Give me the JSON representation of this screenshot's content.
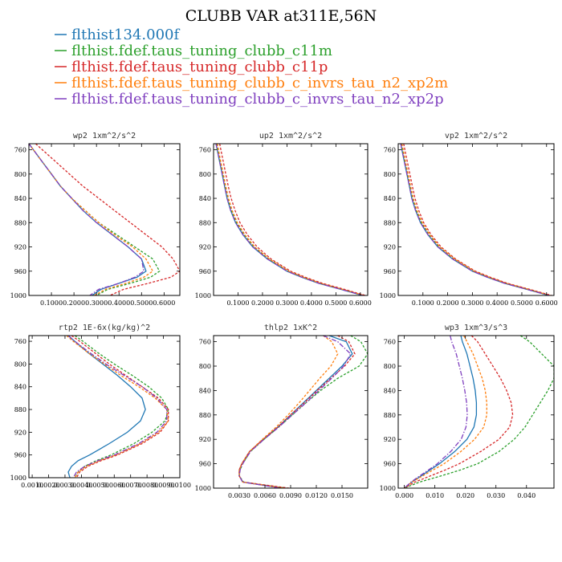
{
  "figure_title": "CLUBB VAR at311E,56N",
  "legend": [
    {
      "label": "flthist134.000f",
      "color": "#1f77b4"
    },
    {
      "label": "flthist.fdef.taus_tuning_clubb_c11m",
      "color": "#2ca02c"
    },
    {
      "label": "flthist.fdef.taus_tuning_clubb_c11p",
      "color": "#d62728"
    },
    {
      "label": "flthist.fdef.taus_tuning_clubb_c_invrs_tau_n2_xp2m",
      "color": "#ff7f0e"
    },
    {
      "label": "flthist.fdef.taus_tuning_clubb_c_invrs_tau_n2_xp2p",
      "color": "#7f3fbf"
    }
  ],
  "chart_data": [
    {
      "type": "line",
      "title": "wp2   1xm^2/s^2",
      "xlim": [
        0.0,
        0.67
      ],
      "ylim": [
        1000,
        750
      ],
      "xticks": [
        0.1,
        0.2,
        0.3,
        0.4,
        0.5,
        0.6
      ],
      "xtick_labels": [
        "0.1000",
        "0.2000",
        "0.3000",
        "0.4000",
        "0.5000",
        "0.6000"
      ],
      "yticks": [
        760,
        800,
        840,
        880,
        920,
        960,
        1000
      ],
      "ytick_labels": [
        "760",
        "800",
        "840",
        "880",
        "920",
        "960",
        "1000"
      ],
      "y": [
        750,
        760,
        780,
        800,
        820,
        840,
        860,
        880,
        900,
        920,
        940,
        960,
        970,
        980,
        990,
        1000
      ],
      "series": [
        {
          "color": "#1f77b4",
          "style": "solid",
          "values": [
            0.0,
            0.02,
            0.06,
            0.1,
            0.14,
            0.19,
            0.24,
            0.3,
            0.37,
            0.44,
            0.5,
            0.52,
            0.48,
            0.4,
            0.32,
            0.28
          ]
        },
        {
          "color": "#2ca02c",
          "style": "dashed",
          "values": [
            0.0,
            0.02,
            0.06,
            0.1,
            0.14,
            0.19,
            0.25,
            0.31,
            0.39,
            0.47,
            0.55,
            0.58,
            0.54,
            0.45,
            0.35,
            0.3
          ]
        },
        {
          "color": "#d62728",
          "style": "dashed",
          "values": [
            0.03,
            0.06,
            0.12,
            0.18,
            0.24,
            0.31,
            0.38,
            0.45,
            0.52,
            0.59,
            0.64,
            0.67,
            0.63,
            0.53,
            0.42,
            0.36
          ]
        },
        {
          "color": "#ff7f0e",
          "style": "dashed",
          "values": [
            0.0,
            0.02,
            0.06,
            0.1,
            0.14,
            0.19,
            0.25,
            0.31,
            0.38,
            0.46,
            0.52,
            0.55,
            0.51,
            0.43,
            0.34,
            0.29
          ]
        },
        {
          "color": "#7f3fbf",
          "style": "dashdot",
          "values": [
            0.0,
            0.02,
            0.06,
            0.1,
            0.14,
            0.19,
            0.24,
            0.3,
            0.37,
            0.44,
            0.5,
            0.51,
            0.47,
            0.4,
            0.31,
            0.27
          ]
        }
      ]
    },
    {
      "type": "line",
      "title": "up2   1xm^2/s^2",
      "xlim": [
        0.0,
        0.63
      ],
      "ylim": [
        1000,
        750
      ],
      "xticks": [
        0.1,
        0.2,
        0.3,
        0.4,
        0.5,
        0.6
      ],
      "xtick_labels": [
        "0.1000",
        "0.2000",
        "0.3000",
        "0.4000",
        "0.5000",
        "0.6000"
      ],
      "yticks": [
        760,
        800,
        840,
        880,
        920,
        960,
        1000
      ],
      "ytick_labels": [
        "760",
        "800",
        "840",
        "880",
        "920",
        "960",
        "1000"
      ],
      "y": [
        750,
        760,
        780,
        800,
        820,
        840,
        860,
        880,
        900,
        920,
        940,
        960,
        970,
        980,
        990,
        1000
      ],
      "series": [
        {
          "color": "#1f77b4",
          "style": "solid",
          "values": [
            0.01,
            0.015,
            0.025,
            0.035,
            0.045,
            0.055,
            0.07,
            0.09,
            0.12,
            0.16,
            0.22,
            0.3,
            0.36,
            0.43,
            0.52,
            0.61
          ]
        },
        {
          "color": "#2ca02c",
          "style": "dashed",
          "values": [
            0.012,
            0.017,
            0.027,
            0.037,
            0.047,
            0.058,
            0.073,
            0.094,
            0.125,
            0.165,
            0.225,
            0.305,
            0.365,
            0.435,
            0.525,
            0.61
          ]
        },
        {
          "color": "#d62728",
          "style": "dashed",
          "values": [
            0.025,
            0.03,
            0.04,
            0.05,
            0.06,
            0.072,
            0.088,
            0.108,
            0.138,
            0.178,
            0.235,
            0.315,
            0.375,
            0.445,
            0.535,
            0.62
          ]
        },
        {
          "color": "#ff7f0e",
          "style": "dashed",
          "values": [
            0.015,
            0.02,
            0.03,
            0.04,
            0.05,
            0.061,
            0.076,
            0.097,
            0.128,
            0.168,
            0.228,
            0.308,
            0.368,
            0.438,
            0.528,
            0.615
          ]
        },
        {
          "color": "#7f3fbf",
          "style": "dashdot",
          "values": [
            0.01,
            0.015,
            0.025,
            0.035,
            0.045,
            0.055,
            0.07,
            0.09,
            0.12,
            0.16,
            0.22,
            0.3,
            0.36,
            0.43,
            0.52,
            0.61
          ]
        }
      ]
    },
    {
      "type": "line",
      "title": "vp2   1xm^2/s^2",
      "xlim": [
        0.0,
        0.63
      ],
      "ylim": [
        1000,
        750
      ],
      "xticks": [
        0.1,
        0.2,
        0.3,
        0.4,
        0.5,
        0.6
      ],
      "xtick_labels": [
        "0.1000",
        "0.2000",
        "0.3000",
        "0.4000",
        "0.5000",
        "0.6000"
      ],
      "yticks": [
        760,
        800,
        840,
        880,
        920,
        960,
        1000
      ],
      "ytick_labels": [
        "760",
        "800",
        "840",
        "880",
        "920",
        "960",
        "1000"
      ],
      "y": [
        750,
        760,
        780,
        800,
        820,
        840,
        860,
        880,
        900,
        920,
        940,
        960,
        970,
        980,
        990,
        1000
      ],
      "series": [
        {
          "color": "#1f77b4",
          "style": "solid",
          "values": [
            0.01,
            0.015,
            0.025,
            0.035,
            0.045,
            0.055,
            0.07,
            0.09,
            0.12,
            0.16,
            0.22,
            0.3,
            0.36,
            0.43,
            0.52,
            0.61
          ]
        },
        {
          "color": "#2ca02c",
          "style": "dashed",
          "values": [
            0.012,
            0.017,
            0.027,
            0.037,
            0.047,
            0.058,
            0.073,
            0.094,
            0.125,
            0.165,
            0.225,
            0.305,
            0.365,
            0.435,
            0.525,
            0.61
          ]
        },
        {
          "color": "#d62728",
          "style": "dashed",
          "values": [
            0.022,
            0.027,
            0.037,
            0.047,
            0.057,
            0.068,
            0.083,
            0.103,
            0.133,
            0.173,
            0.232,
            0.312,
            0.372,
            0.442,
            0.532,
            0.62
          ]
        },
        {
          "color": "#ff7f0e",
          "style": "dashed",
          "values": [
            0.015,
            0.02,
            0.03,
            0.04,
            0.05,
            0.061,
            0.076,
            0.097,
            0.128,
            0.168,
            0.228,
            0.308,
            0.368,
            0.438,
            0.528,
            0.615
          ]
        },
        {
          "color": "#7f3fbf",
          "style": "dashdot",
          "values": [
            0.01,
            0.015,
            0.025,
            0.035,
            0.045,
            0.055,
            0.07,
            0.09,
            0.12,
            0.16,
            0.22,
            0.3,
            0.36,
            0.43,
            0.52,
            0.61
          ]
        }
      ]
    },
    {
      "type": "line",
      "title": "rtp2   1E-6x(kg/kg)^2",
      "xlim": [
        0.0008,
        0.01
      ],
      "ylim": [
        1000,
        750
      ],
      "xticks": [
        0.001,
        0.002,
        0.003,
        0.004,
        0.005,
        0.006,
        0.007,
        0.008,
        0.009,
        0.01
      ],
      "xtick_labels": [
        "0.0010",
        "0.0020",
        "0.0030",
        "0.0040",
        "0.0050",
        "0.0060",
        "0.0070",
        "0.0080",
        "0.0090",
        "0.0100"
      ],
      "yticks": [
        760,
        800,
        840,
        880,
        920,
        960,
        1000
      ],
      "ytick_labels": [
        "760",
        "800",
        "840",
        "880",
        "920",
        "960",
        "1000"
      ],
      "y": [
        750,
        760,
        780,
        800,
        820,
        840,
        860,
        880,
        900,
        920,
        940,
        960,
        970,
        980,
        990,
        1000
      ],
      "series": [
        {
          "color": "#1f77b4",
          "style": "solid",
          "values": [
            0.0032,
            0.0036,
            0.0044,
            0.0053,
            0.0062,
            0.007,
            0.0077,
            0.0079,
            0.0076,
            0.0068,
            0.0057,
            0.0045,
            0.0038,
            0.0034,
            0.0032,
            0.0033
          ]
        },
        {
          "color": "#2ca02c",
          "style": "dashed",
          "values": [
            0.0036,
            0.0041,
            0.005,
            0.006,
            0.0071,
            0.0081,
            0.0089,
            0.0093,
            0.0091,
            0.0083,
            0.0072,
            0.0058,
            0.0049,
            0.0042,
            0.0038,
            0.0036
          ]
        },
        {
          "color": "#d62728",
          "style": "dashed",
          "values": [
            0.0034,
            0.0039,
            0.0048,
            0.0057,
            0.0067,
            0.0077,
            0.0087,
            0.0093,
            0.0093,
            0.0088,
            0.0077,
            0.0062,
            0.0052,
            0.0044,
            0.0039,
            0.0037
          ]
        },
        {
          "color": "#ff7f0e",
          "style": "dashed",
          "values": [
            0.0031,
            0.0035,
            0.0044,
            0.0054,
            0.0064,
            0.0075,
            0.0085,
            0.0092,
            0.0093,
            0.0087,
            0.0076,
            0.0061,
            0.0051,
            0.0043,
            0.0038,
            0.0036
          ]
        },
        {
          "color": "#7f3fbf",
          "style": "dashdot",
          "values": [
            0.0032,
            0.0036,
            0.0045,
            0.0055,
            0.0066,
            0.0077,
            0.0086,
            0.0092,
            0.0092,
            0.0086,
            0.0075,
            0.006,
            0.005,
            0.0042,
            0.0037,
            0.0035
          ]
        }
      ]
    },
    {
      "type": "line",
      "title": "thlp2   1xK^2",
      "xlim": [
        0.0,
        0.018
      ],
      "ylim": [
        1000,
        750
      ],
      "xticks": [
        0.003,
        0.006,
        0.009,
        0.012,
        0.015
      ],
      "xtick_labels": [
        "0.0030",
        "0.0060",
        "0.0090",
        "0.0120",
        "0.0150"
      ],
      "yticks": [
        760,
        800,
        840,
        880,
        920,
        960,
        1000
      ],
      "ytick_labels": [
        "760",
        "800",
        "840",
        "880",
        "920",
        "960",
        "1000"
      ],
      "y": [
        750,
        760,
        780,
        800,
        820,
        840,
        860,
        880,
        900,
        920,
        940,
        960,
        970,
        980,
        990,
        1000
      ],
      "series": [
        {
          "color": "#1f77b4",
          "style": "solid",
          "values": [
            0.0135,
            0.0155,
            0.0162,
            0.015,
            0.0135,
            0.012,
            0.0105,
            0.009,
            0.0075,
            0.0058,
            0.0042,
            0.0033,
            0.003,
            0.003,
            0.0034,
            0.008
          ]
        },
        {
          "color": "#2ca02c",
          "style": "dashed",
          "values": [
            0.016,
            0.0172,
            0.018,
            0.017,
            0.0145,
            0.0125,
            0.0108,
            0.0092,
            0.0076,
            0.0059,
            0.0043,
            0.0034,
            0.0031,
            0.003,
            0.0035,
            0.0085
          ]
        },
        {
          "color": "#d62728",
          "style": "dashed",
          "values": [
            0.0145,
            0.0158,
            0.0165,
            0.0153,
            0.0137,
            0.0121,
            0.0106,
            0.009,
            0.0075,
            0.0058,
            0.0042,
            0.0033,
            0.003,
            0.003,
            0.0034,
            0.0088
          ]
        },
        {
          "color": "#ff7f0e",
          "style": "dashed",
          "values": [
            0.0128,
            0.0138,
            0.0145,
            0.0137,
            0.0124,
            0.0112,
            0.01,
            0.0087,
            0.0073,
            0.0057,
            0.0042,
            0.0033,
            0.003,
            0.003,
            0.0034,
            0.0082
          ]
        },
        {
          "color": "#7f3fbf",
          "style": "dashdot",
          "values": [
            0.0128,
            0.0145,
            0.016,
            0.0152,
            0.0138,
            0.0123,
            0.0108,
            0.0092,
            0.0076,
            0.0059,
            0.0043,
            0.0034,
            0.0031,
            0.003,
            0.0034,
            0.0078
          ]
        }
      ]
    },
    {
      "type": "line",
      "title": "wp3   1xm^3/s^3",
      "xlim": [
        -0.002,
        0.049
      ],
      "ylim": [
        1000,
        750
      ],
      "xticks": [
        0.0,
        0.01,
        0.02,
        0.03,
        0.04
      ],
      "xtick_labels": [
        "0.000",
        "0.010",
        "0.020",
        "0.030",
        "0.040"
      ],
      "yticks": [
        760,
        800,
        840,
        880,
        920,
        960,
        1000
      ],
      "ytick_labels": [
        "760",
        "800",
        "840",
        "880",
        "920",
        "960",
        "1000"
      ],
      "y": [
        750,
        760,
        780,
        800,
        820,
        840,
        860,
        880,
        900,
        920,
        940,
        960,
        970,
        980,
        990,
        1000
      ],
      "series": [
        {
          "color": "#1f77b4",
          "style": "solid",
          "values": [
            0.0185,
            0.019,
            0.0205,
            0.0215,
            0.0225,
            0.0232,
            0.0236,
            0.0236,
            0.0228,
            0.0205,
            0.0165,
            0.0115,
            0.0085,
            0.0055,
            0.0025,
            0.0
          ]
        },
        {
          "color": "#2ca02c",
          "style": "dashed",
          "values": [
            0.038,
            0.041,
            0.045,
            0.049,
            0.049,
            0.047,
            0.0445,
            0.042,
            0.0395,
            0.036,
            0.031,
            0.024,
            0.0185,
            0.012,
            0.005,
            0.0
          ]
        },
        {
          "color": "#d62728",
          "style": "dashed",
          "values": [
            0.022,
            0.024,
            0.0265,
            0.029,
            0.0315,
            0.0335,
            0.035,
            0.0355,
            0.0345,
            0.031,
            0.025,
            0.018,
            0.0135,
            0.0085,
            0.0035,
            0.0
          ]
        },
        {
          "color": "#ff7f0e",
          "style": "dashed",
          "values": [
            0.0195,
            0.0205,
            0.0225,
            0.024,
            0.0255,
            0.0265,
            0.027,
            0.027,
            0.026,
            0.023,
            0.0185,
            0.013,
            0.0095,
            0.006,
            0.0025,
            0.0
          ]
        },
        {
          "color": "#7f3fbf",
          "style": "dashdot",
          "values": [
            0.015,
            0.0155,
            0.017,
            0.018,
            0.019,
            0.0198,
            0.0204,
            0.0206,
            0.0202,
            0.0186,
            0.0152,
            0.0108,
            0.008,
            0.005,
            0.0022,
            0.0
          ]
        }
      ]
    }
  ]
}
